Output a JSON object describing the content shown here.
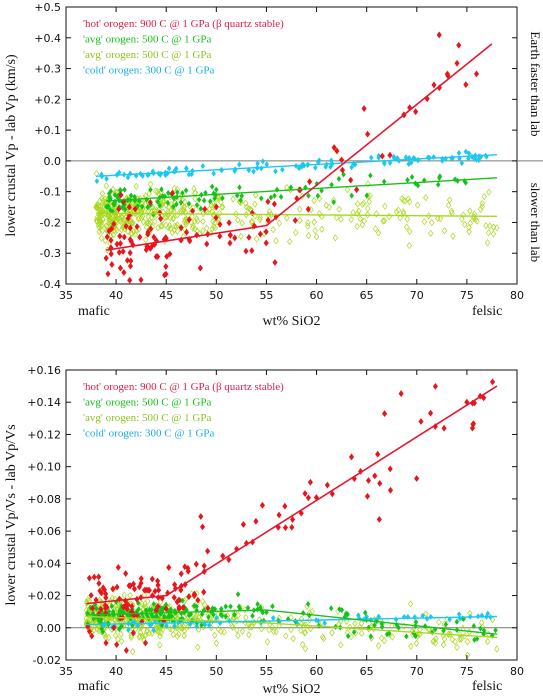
{
  "colors": {
    "hot": "#e8151b",
    "hot_line": "#e8152f",
    "hot_text": "#e11d48",
    "avg": "#16c21a",
    "avg2": "#a8d81c",
    "avg2_text": "#8fc31f",
    "cold": "#1cc8f0",
    "cold_text": "#19aee8",
    "zero_line": "#7a7a7a",
    "frame": "#111111"
  },
  "chart_data": [
    {
      "type": "scatter",
      "xlabel": "wt% SiO2",
      "ylabel": "lower crustal Vp - lab Vp (km/s)",
      "xlim": [
        35,
        80
      ],
      "ylim": [
        -0.4,
        0.5
      ],
      "x_ticks": [
        "35",
        "40",
        "45",
        "50",
        "55",
        "60",
        "65",
        "70",
        "75",
        "80"
      ],
      "y_ticks": [
        "-0.4",
        "-0.3",
        "-0.2",
        "-0.1",
        "0.0",
        "+0.1",
        "+0.2",
        "+0.3",
        "+0.4",
        "+0.5"
      ],
      "x_end_labels": {
        "left": "mafic",
        "right": "felsic"
      },
      "side_labels": {
        "upper": "Earth faster than lab",
        "lower": "slower than lab"
      },
      "legend_position": "top-left",
      "series": [
        {
          "key": "hot",
          "name": "'hot' orogen: 900 C @ 1 GPa (β quartz stable)",
          "trend": [
            [
              39,
              -0.29
            ],
            [
              55,
              -0.21
            ],
            [
              77.5,
              0.38
            ]
          ],
          "spread": 0.06
        },
        {
          "key": "avg",
          "name": "'avg' orogen: 500 C @ 1 GPa",
          "trend": [
            [
              39,
              -0.13
            ],
            [
              78,
              -0.055
            ]
          ],
          "spread": 0.02
        },
        {
          "key": "avg2",
          "name": "'avg' orogen: 500 C @ 1 GPa",
          "trend": [
            [
              38,
              -0.17
            ],
            [
              78,
              -0.18
            ]
          ],
          "spread": 0.04
        },
        {
          "key": "cold",
          "name": "'cold' orogen: 300 C @ 1 GPa",
          "trend": [
            [
              38,
              -0.05
            ],
            [
              78,
              0.02
            ]
          ],
          "spread": 0.008
        }
      ]
    },
    {
      "type": "scatter",
      "xlabel": "wt% SiO2",
      "ylabel": "lower crustal Vp/Vs - lab Vp/Vs",
      "xlim": [
        35,
        80
      ],
      "ylim": [
        -0.02,
        0.16
      ],
      "x_ticks": [
        "35",
        "40",
        "45",
        "50",
        "55",
        "60",
        "65",
        "70",
        "75",
        "80"
      ],
      "y_ticks": [
        "-0.02",
        "0.00",
        "+0.02",
        "+0.04",
        "+0.06",
        "+0.08",
        "+0.10",
        "+0.12",
        "+0.14",
        "+0.16"
      ],
      "x_end_labels": {
        "left": "mafic",
        "right": "felsic"
      },
      "legend_position": "top-left",
      "series": [
        {
          "key": "hot",
          "name": "'hot' orogen: 900 C @ 1 GPa (β quartz stable)",
          "trend": [
            [
              37,
              0.015
            ],
            [
              45,
              0.02
            ],
            [
              78,
              0.15
            ]
          ],
          "spread": 0.012
        },
        {
          "key": "avg",
          "name": "'avg' orogen: 500 C @ 1 GPa",
          "trend": [
            [
              37,
              0.008
            ],
            [
              55,
              0.011
            ],
            [
              78,
              -0.004
            ]
          ],
          "spread": 0.004
        },
        {
          "key": "avg2",
          "name": "'avg' orogen: 500 C @ 1 GPa",
          "trend": [
            [
              37,
              0.007
            ],
            [
              55,
              0.003
            ],
            [
              78,
              -0.006
            ]
          ],
          "spread": 0.006
        },
        {
          "key": "cold",
          "name": "'cold' orogen: 300 C @ 1 GPa",
          "trend": [
            [
              37,
              0.002
            ],
            [
              78,
              0.007
            ]
          ],
          "spread": 0.002
        }
      ]
    }
  ]
}
